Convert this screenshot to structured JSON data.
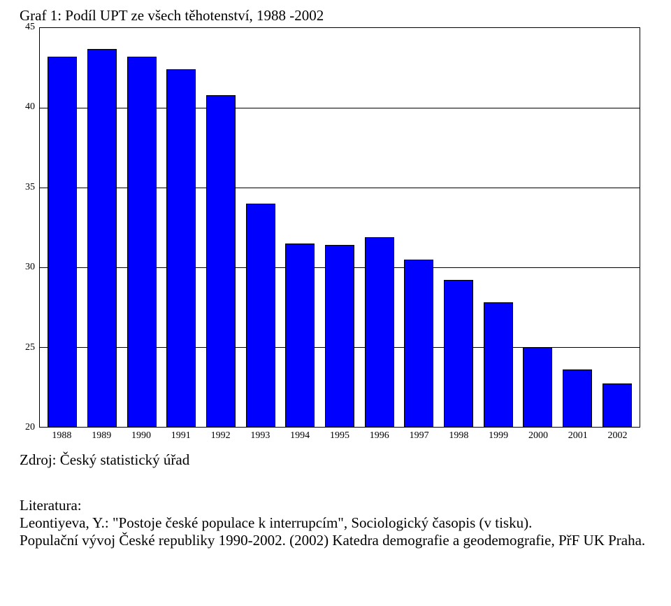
{
  "title": "Graf 1: Podíl UPT ze všech těhotenství, 1988 -2002",
  "source": "Zdroj: Český statistický úřad",
  "literature": {
    "heading": "Literatura:",
    "line1": "Leontiyeva, Y.: \"Postoje české populace k interrupcím\", Sociologický časopis (v tisku).",
    "line2": "Populační vývoj České republiky 1990-2002. (2002) Katedra demografie a geodemografie, PřF UK Praha."
  },
  "chart": {
    "type": "bar",
    "categories": [
      "1988",
      "1989",
      "1990",
      "1991",
      "1992",
      "1993",
      "1994",
      "1995",
      "1996",
      "1997",
      "1998",
      "1999",
      "2000",
      "2001",
      "2002"
    ],
    "values": [
      43.2,
      43.7,
      43.2,
      42.4,
      40.8,
      34.0,
      31.5,
      31.4,
      31.9,
      30.5,
      29.2,
      27.8,
      25.0,
      23.6,
      22.7
    ],
    "ylim": [
      20,
      45
    ],
    "ytick_step": 5,
    "yticks": [
      20,
      25,
      30,
      35,
      40,
      45
    ],
    "bar_fill": "#0000ff",
    "bar_border": "#000000",
    "grid_color": "#000000",
    "background_color": "#ffffff",
    "axis_border_color": "#000000",
    "tick_fontsize": 14,
    "bar_width_ratio": 0.74
  }
}
